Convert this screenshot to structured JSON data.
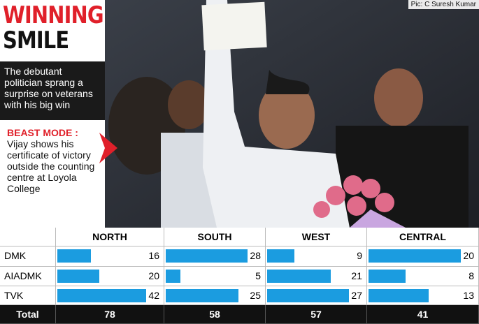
{
  "header": {
    "title_line1": "WINNING",
    "title_line2": "SMILE",
    "subtitle": "The debutant politician sprang a surprise on veterans with his big win",
    "photo_credit": "Pic: C Suresh Kumar"
  },
  "caption": {
    "label": "BEAST MODE :",
    "text": "Vijay shows his certificate of victory outside the counting centre at Loyola College"
  },
  "table": {
    "columns": [
      "NORTH",
      "SOUTH",
      "WEST",
      "CENTRAL"
    ],
    "rows": [
      {
        "party": "DMK",
        "values": [
          16,
          28,
          9,
          20
        ]
      },
      {
        "party": "AIADMK",
        "values": [
          20,
          5,
          21,
          8
        ]
      },
      {
        "party": "TVK",
        "values": [
          42,
          25,
          27,
          13
        ]
      }
    ],
    "total": {
      "label": "Total",
      "values": [
        78,
        58,
        57,
        41
      ]
    }
  }
}
